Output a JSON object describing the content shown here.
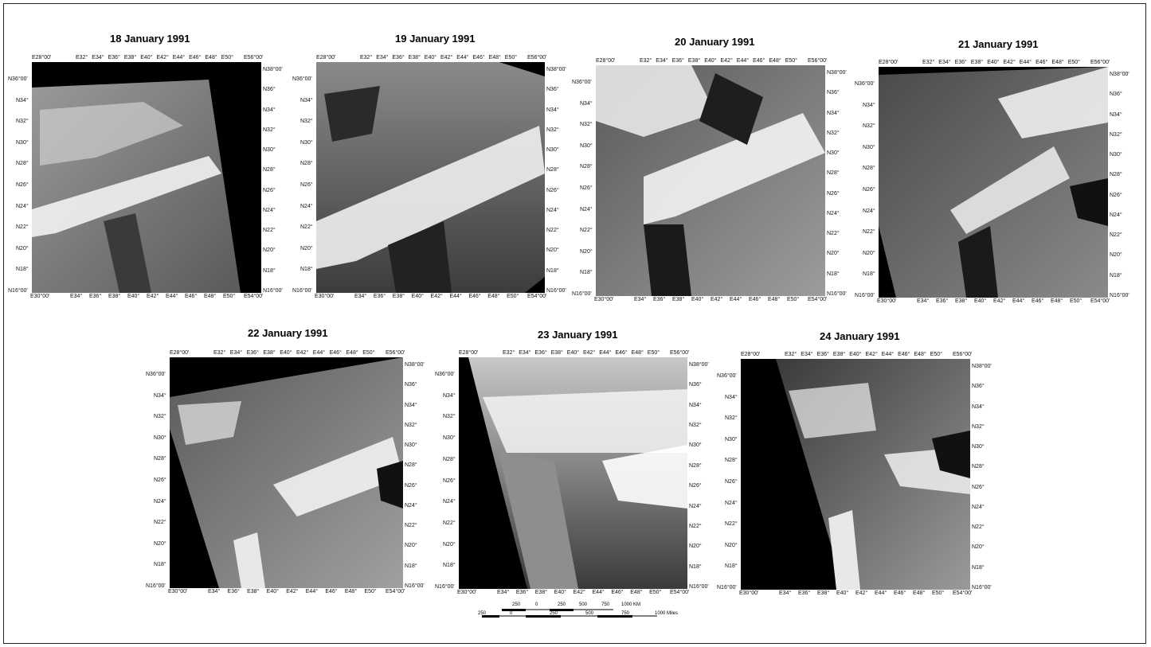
{
  "panels": [
    {
      "title": "18 January 1991"
    },
    {
      "title": "19 January 1991"
    },
    {
      "title": "20 January 1991"
    },
    {
      "title": "21 January 1991"
    },
    {
      "title": "22 January 1991"
    },
    {
      "title": "23 January 1991"
    },
    {
      "title": "24 January 1991"
    }
  ],
  "axes": {
    "top": [
      "E28°00'",
      "E32°",
      "E34°",
      "E36°",
      "E38°",
      "E40°",
      "E42°",
      "E44°",
      "E46°",
      "E48°",
      "E50°",
      "E56°00'"
    ],
    "bottom": [
      "E30°00'",
      "E34°",
      "E36°",
      "E38°",
      "E40°",
      "E42°",
      "E44°",
      "E46°",
      "E48°",
      "E50°",
      "E54°00'"
    ],
    "left": [
      "N36°00'",
      "N34°",
      "N32°",
      "N30°",
      "N28°",
      "N26°",
      "N24°",
      "N22°",
      "N20°",
      "N18°",
      "N16°00'"
    ],
    "right": [
      "N38°00'",
      "N36°",
      "N34°",
      "N32°",
      "N30°",
      "N28°",
      "N26°",
      "N24°",
      "N22°",
      "N20°",
      "N18°",
      "N16°00'"
    ]
  },
  "scale_bar": {
    "km_labels": [
      "250",
      "0",
      "250",
      "500",
      "750",
      "1000 KM"
    ],
    "mile_labels": [
      "250",
      "0",
      "250",
      "500",
      "750",
      "1000 Miles"
    ]
  }
}
